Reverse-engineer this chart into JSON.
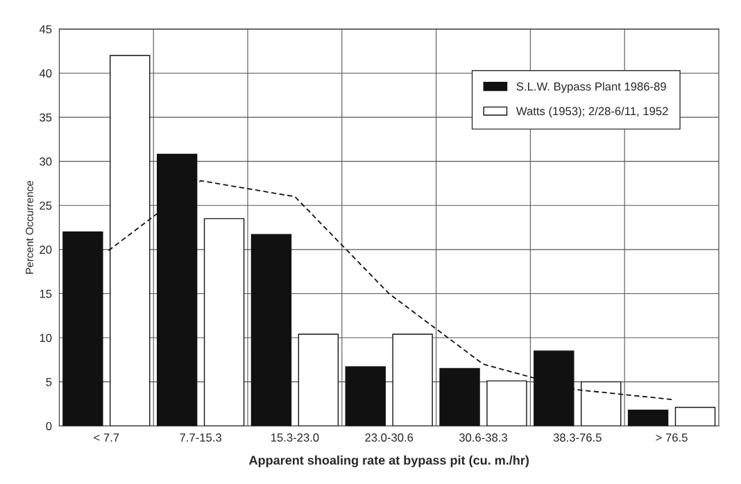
{
  "chart_data": {
    "type": "bar",
    "xlabel": "Apparent shoaling rate at bypass pit (cu. m./hr)",
    "ylabel": "Percent Occurrence",
    "categories": [
      "< 7.7",
      "7.7-15.3",
      "15.3-23.0",
      "23.0-30.6",
      "30.6-38.3",
      "38.3-76.5",
      "> 76.5"
    ],
    "series": [
      {
        "name": "S.L.W. Bypass Plant 1986-89",
        "color": "#111111",
        "values": [
          22,
          30.8,
          21.7,
          6.7,
          6.5,
          8.5,
          1.8
        ]
      },
      {
        "name": "Watts (1953); 2/28-6/11, 1952",
        "color": "#ffffff",
        "values": [
          42,
          23.5,
          10.4,
          10.4,
          5.1,
          5,
          2.1
        ]
      },
      {
        "type": "line",
        "color": "#111111",
        "line_style": "dashed",
        "values": [
          19.7,
          27.8,
          26,
          15,
          7,
          4.1,
          3
        ]
      }
    ],
    "ylim": [
      0,
      45
    ],
    "yticks": [
      0,
      5,
      10,
      15,
      20,
      25,
      30,
      35,
      40,
      45
    ],
    "grid": true,
    "legend": "top right"
  }
}
